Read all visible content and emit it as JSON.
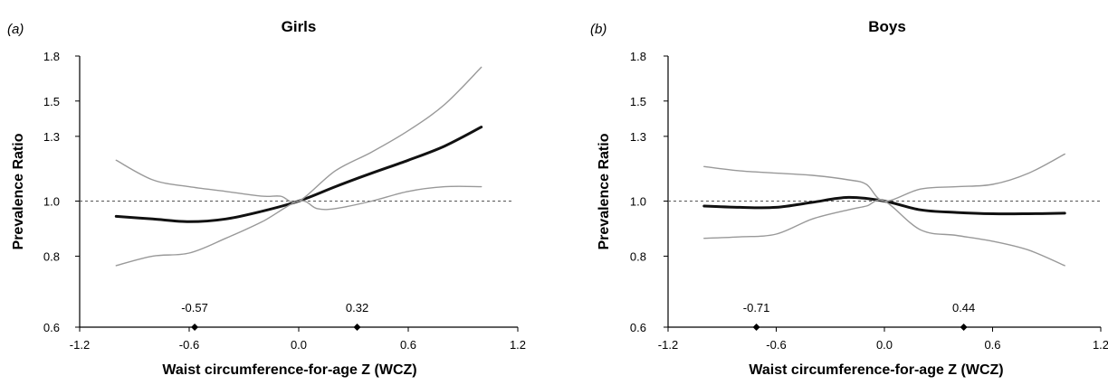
{
  "chart_data": [
    {
      "type": "line",
      "panel_label": "(a)",
      "title": "Girls",
      "xlabel": "Waist circumference-for-age Z (WCZ)",
      "ylabel": "Prevalence Ratio",
      "y_scale": "log",
      "xlim": [
        -1.2,
        1.2
      ],
      "ylim": [
        0.6,
        1.8
      ],
      "x_ticks": [
        -1.2,
        -0.6,
        0.0,
        0.6,
        1.2
      ],
      "x_tick_labels": [
        "-1.2",
        "-0.6",
        "0.0",
        "0.6",
        "1.2"
      ],
      "y_ticks": [
        0.6,
        0.8,
        1.0,
        1.3,
        1.5,
        1.8
      ],
      "y_tick_labels": [
        "0.6",
        "0.8",
        "1.0",
        "1.3",
        "1.5",
        "1.8"
      ],
      "reference_line": 1.0,
      "grid": false,
      "legend": "none",
      "knots": [
        {
          "x": -0.57,
          "label": "-0.57"
        },
        {
          "x": 0.32,
          "label": "0.32"
        }
      ],
      "series": [
        {
          "role": "estimate",
          "color": "#111111",
          "x": [
            -1.0,
            -0.8,
            -0.6,
            -0.4,
            -0.2,
            0.0,
            0.2,
            0.4,
            0.6,
            0.8,
            1.0
          ],
          "y": [
            0.94,
            0.93,
            0.92,
            0.93,
            0.96,
            1.0,
            1.06,
            1.12,
            1.18,
            1.25,
            1.35
          ]
        },
        {
          "role": "upper-ci",
          "color": "#999999",
          "x": [
            -1.0,
            -0.8,
            -0.6,
            -0.4,
            -0.2,
            -0.1,
            0.0,
            0.2,
            0.4,
            0.6,
            0.8,
            1.0
          ],
          "y": [
            1.18,
            1.09,
            1.06,
            1.04,
            1.02,
            1.02,
            1.0,
            1.13,
            1.22,
            1.33,
            1.48,
            1.72
          ]
        },
        {
          "role": "lower-ci",
          "color": "#999999",
          "x": [
            -1.0,
            -0.8,
            -0.6,
            -0.4,
            -0.2,
            0.0,
            0.1,
            0.2,
            0.4,
            0.6,
            0.8,
            1.0
          ],
          "y": [
            0.77,
            0.8,
            0.81,
            0.86,
            0.92,
            1.0,
            0.97,
            0.97,
            1.0,
            1.04,
            1.06,
            1.06
          ]
        }
      ]
    },
    {
      "type": "line",
      "panel_label": "(b)",
      "title": "Boys",
      "xlabel": "Waist circumference-for-age Z (WCZ)",
      "ylabel": "Prevalence Ratio",
      "y_scale": "log",
      "xlim": [
        -1.2,
        1.2
      ],
      "ylim": [
        0.6,
        1.8
      ],
      "x_ticks": [
        -1.2,
        -0.6,
        0.0,
        0.6,
        1.2
      ],
      "x_tick_labels": [
        "-1.2",
        "-0.6",
        "0.0",
        "0.6",
        "1.2"
      ],
      "y_ticks": [
        0.6,
        0.8,
        1.0,
        1.3,
        1.5,
        1.8
      ],
      "y_tick_labels": [
        "0.6",
        "0.8",
        "1.0",
        "1.3",
        "1.5",
        "1.8"
      ],
      "reference_line": 1.0,
      "grid": false,
      "legend": "none",
      "knots": [
        {
          "x": -0.71,
          "label": "-0.71"
        },
        {
          "x": 0.44,
          "label": "0.44"
        }
      ],
      "series": [
        {
          "role": "estimate",
          "color": "#111111",
          "x": [
            -1.0,
            -0.8,
            -0.6,
            -0.4,
            -0.2,
            0.0,
            0.2,
            0.4,
            0.6,
            0.8,
            1.0
          ],
          "y": [
            0.98,
            0.975,
            0.975,
            0.995,
            1.015,
            1.0,
            0.965,
            0.955,
            0.95,
            0.95,
            0.952
          ]
        },
        {
          "role": "upper-ci",
          "color": "#999999",
          "x": [
            -1.0,
            -0.8,
            -0.6,
            -0.4,
            -0.2,
            -0.1,
            0.0,
            0.2,
            0.4,
            0.6,
            0.8,
            1.0
          ],
          "y": [
            1.15,
            1.13,
            1.12,
            1.11,
            1.09,
            1.07,
            1.0,
            1.05,
            1.06,
            1.07,
            1.12,
            1.21
          ]
        },
        {
          "role": "lower-ci",
          "color": "#999999",
          "x": [
            -1.0,
            -0.8,
            -0.6,
            -0.4,
            -0.2,
            -0.1,
            0.0,
            0.2,
            0.4,
            0.6,
            0.8,
            1.0
          ],
          "y": [
            0.86,
            0.865,
            0.875,
            0.93,
            0.965,
            0.98,
            1.0,
            0.89,
            0.87,
            0.85,
            0.82,
            0.77
          ]
        }
      ]
    }
  ]
}
